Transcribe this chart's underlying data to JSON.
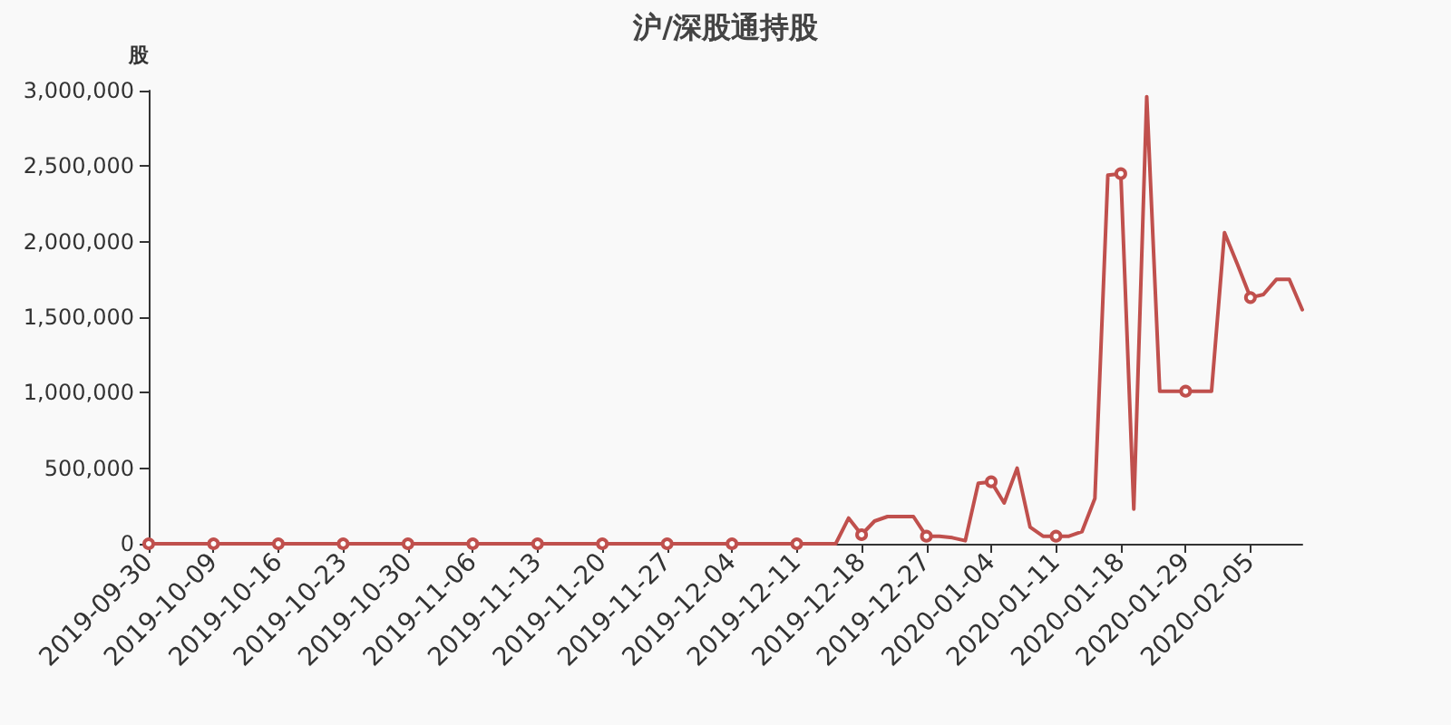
{
  "chart_data": {
    "type": "line",
    "title": "沪/深股通持股",
    "ylabel": "股",
    "categories": [
      "2019-09-30",
      null,
      null,
      null,
      null,
      "2019-10-09",
      null,
      null,
      null,
      null,
      "2019-10-16",
      null,
      null,
      null,
      null,
      "2019-10-23",
      null,
      null,
      null,
      null,
      "2019-10-30",
      null,
      null,
      null,
      null,
      "2019-11-06",
      null,
      null,
      null,
      null,
      "2019-11-13",
      null,
      null,
      null,
      null,
      "2019-11-20",
      null,
      null,
      null,
      null,
      "2019-11-27",
      null,
      null,
      null,
      null,
      "2019-12-04",
      null,
      null,
      null,
      null,
      "2019-12-11",
      null,
      null,
      null,
      null,
      "2019-12-18",
      null,
      null,
      null,
      null,
      "2019-12-27",
      null,
      null,
      null,
      null,
      "2020-01-04",
      null,
      null,
      null,
      null,
      "2020-01-11",
      null,
      null,
      null,
      null,
      "2020-01-18",
      null,
      null,
      null,
      null,
      "2020-01-29",
      null,
      null,
      null,
      null,
      "2020-02-05",
      null,
      null,
      null,
      null
    ],
    "series": [
      {
        "color": "#c0504d",
        "values": [
          0,
          0,
          0,
          0,
          0,
          0,
          0,
          0,
          0,
          0,
          0,
          0,
          0,
          0,
          0,
          0,
          0,
          0,
          0,
          0,
          0,
          0,
          0,
          0,
          0,
          0,
          0,
          0,
          0,
          0,
          0,
          0,
          0,
          0,
          0,
          0,
          0,
          0,
          0,
          0,
          0,
          0,
          0,
          0,
          0,
          0,
          0,
          0,
          0,
          0,
          0,
          0,
          0,
          0,
          170000,
          60000,
          150000,
          180000,
          180000,
          180000,
          50000,
          50000,
          40000,
          20000,
          400000,
          410000,
          270000,
          500000,
          110000,
          50000,
          50000,
          50000,
          80000,
          300000,
          2440000,
          2450000,
          230000,
          2960000,
          1010000,
          1010000,
          1010000,
          1010000,
          1010000,
          2060000,
          1850000,
          1630000,
          1650000,
          1750000,
          1750000,
          1550000
        ]
      }
    ],
    "ylim": [
      0,
      3000000
    ],
    "yticks": [
      {
        "value": 0,
        "label": "0"
      },
      {
        "value": 500000,
        "label": "500,000"
      },
      {
        "value": 1000000,
        "label": "1,000,000"
      },
      {
        "value": 1500000,
        "label": "1,500,000"
      },
      {
        "value": 2000000,
        "label": "2,000,000"
      },
      {
        "value": 2500000,
        "label": "2,500,000"
      },
      {
        "value": 3000000,
        "label": "3,000,000"
      }
    ],
    "grid": false,
    "line_style": "solid"
  }
}
